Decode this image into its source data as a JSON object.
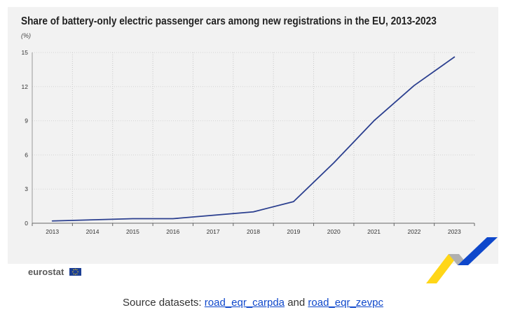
{
  "chart_data": {
    "type": "line",
    "title": "Share of battery-only electric passenger cars among new registrations in the EU, 2013-2023",
    "unit_label": "(%)",
    "xlabel": "",
    "ylabel": "",
    "categories": [
      "2013",
      "2014",
      "2015",
      "2016",
      "2017",
      "2018",
      "2019",
      "2020",
      "2021",
      "2022",
      "2023"
    ],
    "series": [
      {
        "values": [
          0.2,
          0.3,
          0.4,
          0.4,
          0.7,
          1.0,
          1.9,
          5.3,
          9.0,
          12.1,
          14.6
        ],
        "color": "#2b3f8f"
      }
    ],
    "yticks": [
      "0",
      "3",
      "6",
      "9",
      "12",
      "15"
    ],
    "ylim": [
      0,
      15
    ],
    "grid": "vertical-dotted"
  },
  "branding": {
    "logo_text": "eurostat",
    "flag_icon": "eu-flag-icon",
    "ribbon_icon": "eurostat-ribbon-decoration",
    "colors": {
      "blue": "#0e47cb",
      "yellow": "#ffd617",
      "grey": "#b0b0b0"
    }
  },
  "footer": {
    "prefix": "Source datasets:",
    "link1": "road_eqr_carpda",
    "conjunction": "and",
    "link2": "road_eqr_zevpc"
  }
}
